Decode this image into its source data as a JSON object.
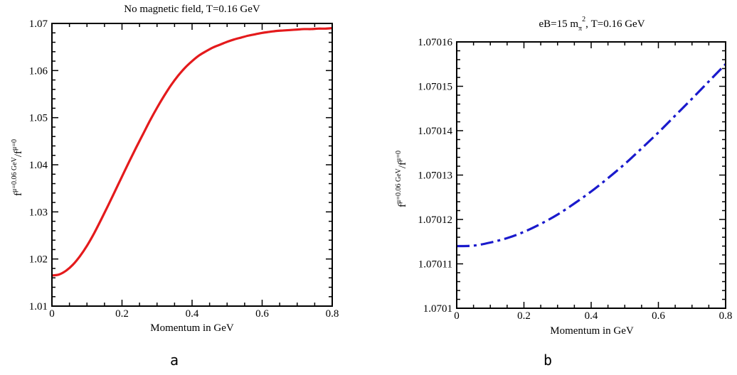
{
  "chart_data": [
    {
      "type": "line",
      "panel_label": "a",
      "title": "No magnetic field, T=0.16 GeV",
      "xlabel": "Momentum in GeV",
      "ylabel": {
        "f1": "f",
        "sup1": "μ=0.06 GeV",
        "slash": "/f",
        "sup2": "μ=0"
      },
      "xlim": [
        0,
        0.8
      ],
      "ylim": [
        1.01,
        1.07
      ],
      "x_ticks": [
        0,
        0.2,
        0.4,
        0.6,
        0.8
      ],
      "x_tick_labels": [
        "0",
        "0.2",
        "0.4",
        "0.6",
        "0.8"
      ],
      "y_ticks": [
        1.01,
        1.02,
        1.03,
        1.04,
        1.05,
        1.06,
        1.07
      ],
      "y_tick_labels": [
        "1.01",
        "1.02",
        "1.03",
        "1.04",
        "1.05",
        "1.06",
        "1.07"
      ],
      "x_minor_step": 0.05,
      "y_minor_step": 0.002,
      "grid": false,
      "series": [
        {
          "color": "#e41a1c",
          "style": "solid",
          "x": [
            0,
            0.02,
            0.04,
            0.06,
            0.08,
            0.1,
            0.12,
            0.14,
            0.16,
            0.18,
            0.2,
            0.22,
            0.24,
            0.26,
            0.28,
            0.3,
            0.32,
            0.34,
            0.36,
            0.38,
            0.4,
            0.42,
            0.44,
            0.46,
            0.48,
            0.5,
            0.52,
            0.54,
            0.56,
            0.58,
            0.6,
            0.62,
            0.64,
            0.66,
            0.68,
            0.7,
            0.72,
            0.74,
            0.76,
            0.78,
            0.8
          ],
          "y": [
            1.0165,
            1.0167,
            1.0175,
            1.0188,
            1.0206,
            1.0228,
            1.0254,
            1.0283,
            1.0313,
            1.0344,
            1.0375,
            1.0406,
            1.0436,
            1.0465,
            1.0494,
            1.0521,
            1.0546,
            1.0569,
            1.0589,
            1.0606,
            1.062,
            1.0632,
            1.0641,
            1.0649,
            1.0655,
            1.0661,
            1.0666,
            1.067,
            1.0674,
            1.0677,
            1.068,
            1.0682,
            1.0684,
            1.0685,
            1.0686,
            1.0687,
            1.0688,
            1.0688,
            1.0689,
            1.0689,
            1.069
          ]
        }
      ]
    },
    {
      "type": "line",
      "panel_label": "b",
      "title": {
        "pre": "eB=15 m",
        "sub": "π",
        "sup": "2",
        "post": ", T=0.16 GeV"
      },
      "xlabel": "Momentum in GeV",
      "ylabel": {
        "f1": "f",
        "sup1": "μ=0.06 GeV",
        "slash": "/f",
        "sup2": "μ=0"
      },
      "xlim": [
        0,
        0.8
      ],
      "ylim": [
        1.0701,
        1.07016
      ],
      "x_ticks": [
        0,
        0.2,
        0.4,
        0.6,
        0.8
      ],
      "x_tick_labels": [
        "0",
        "0.2",
        "0.4",
        "0.6",
        "0.8"
      ],
      "y_ticks": [
        1.0701,
        1.07011,
        1.07012,
        1.07013,
        1.07014,
        1.07015,
        1.07016
      ],
      "y_tick_labels": [
        "1.0701",
        "1.07011",
        "1.07012",
        "1.07013",
        "1.07014",
        "1.07015",
        "1.07016"
      ],
      "x_minor_step": 0.05,
      "y_minor_step": 2e-06,
      "grid": false,
      "series": [
        {
          "color": "#1a1acc",
          "style": "dash-dot",
          "x": [
            0,
            0.05,
            0.1,
            0.15,
            0.2,
            0.25,
            0.3,
            0.35,
            0.4,
            0.45,
            0.5,
            0.55,
            0.6,
            0.65,
            0.7,
            0.75,
            0.8
          ],
          "y": [
            1.070114,
            1.0701141,
            1.0701148,
            1.0701158,
            1.0701172,
            1.070119,
            1.0701211,
            1.0701236,
            1.0701263,
            1.0701293,
            1.0701325,
            1.070136,
            1.0701396,
            1.0701434,
            1.0701472,
            1.0701511,
            1.070155
          ]
        }
      ]
    }
  ]
}
